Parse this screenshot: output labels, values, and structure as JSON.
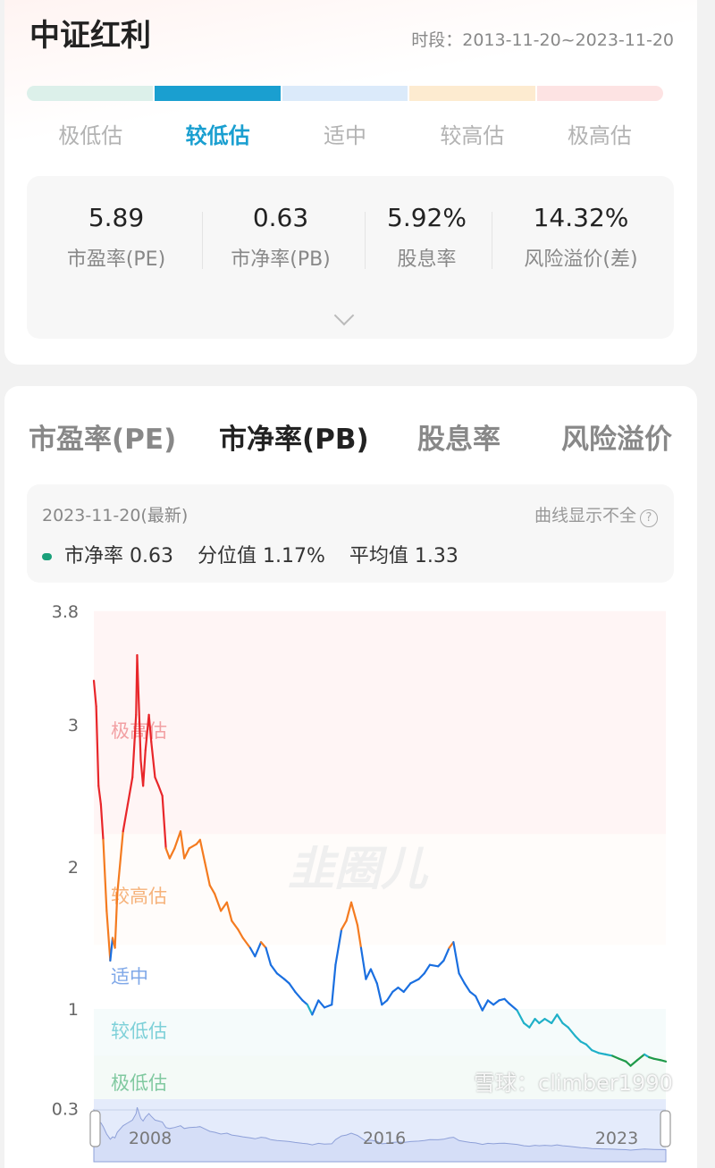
{
  "header": {
    "title": "中证红利",
    "period": "时段：2013-11-20~2023-11-20"
  },
  "valuation_bar": {
    "colors": [
      "#dcf0ea",
      "#1a9fd0",
      "#dbeafa",
      "#fdebd0",
      "#fde3e3"
    ],
    "levels": [
      "极低估",
      "较低估",
      "适中",
      "较高估",
      "极高估"
    ],
    "active_index": 1,
    "active_color": "#1a9fd0"
  },
  "stats": [
    {
      "value": "5.89",
      "label": "市盈率(PE)"
    },
    {
      "value": "0.63",
      "label": "市净率(PB)"
    },
    {
      "value": "5.92%",
      "label": "股息率"
    },
    {
      "value": "14.32%",
      "label": "风险溢价(差)"
    }
  ],
  "expand_icon": "chevron-down-icon",
  "tabs": [
    {
      "label": "市盈率(PE)"
    },
    {
      "label": "市净率(PB)",
      "active": true
    },
    {
      "label": "股息率"
    },
    {
      "label": "风险溢价"
    }
  ],
  "info": {
    "date": "2023-11-20(最新)",
    "hint": "曲线显示不全",
    "hint_icon": "question-circle-icon",
    "pb_label": "市净率",
    "pb_value": "0.63",
    "pct_label": "分位值",
    "pct_value": "1.17%",
    "avg_label": "平均值",
    "avg_value": "1.33"
  },
  "watermarks": {
    "center_logo": "韭圈儿",
    "bottom": "雪球：climber1990"
  },
  "chart_data": {
    "type": "line",
    "ylabel": "",
    "xlabel": "",
    "ylim": [
      0.3,
      3.8
    ],
    "yticks": [
      "3.8",
      "3",
      "2",
      "1",
      "0.3"
    ],
    "grid": false,
    "bands": [
      {
        "name": "极高估",
        "from": 2.23,
        "to": 3.8,
        "color": "#e8262a",
        "bg": "#fff5f5",
        "label_color": "#f2a0a3"
      },
      {
        "name": "较高估",
        "from": 1.45,
        "to": 2.23,
        "color": "#f47b20",
        "bg": "#fffcfa",
        "label_color": "#f6b27a"
      },
      {
        "name": "适中",
        "from": 1.0,
        "to": 1.45,
        "color": "#1a6fe0",
        "bg": "#ffffff",
        "label_color": "#7fa8e8"
      },
      {
        "name": "较低估",
        "from": 0.67,
        "to": 1.0,
        "color": "#1fb0c8",
        "bg": "#f5fbfb",
        "label_color": "#7dd0d8"
      },
      {
        "name": "极低估",
        "from": 0.3,
        "to": 0.67,
        "color": "#1f9a4a",
        "bg": "#f4faf7",
        "label_color": "#80c9a0"
      }
    ],
    "navigator_labels": [
      "2008",
      "2016",
      "2023"
    ],
    "points": [
      [
        "2006-01-01",
        3.31
      ],
      [
        "2006-02-01",
        3.13
      ],
      [
        "2006-03-01",
        2.57
      ],
      [
        "2006-04-01",
        2.44
      ],
      [
        "2006-05-01",
        2.19
      ],
      [
        "2006-06-15",
        1.69
      ],
      [
        "2006-08-01",
        1.34
      ],
      [
        "2006-09-01",
        1.5
      ],
      [
        "2006-10-01",
        1.43
      ],
      [
        "2006-11-01",
        1.81
      ],
      [
        "2007-01-15",
        2.25
      ],
      [
        "2007-03-15",
        2.44
      ],
      [
        "2007-05-15",
        2.63
      ],
      [
        "2007-07-01",
        3.07
      ],
      [
        "2007-07-15",
        3.49
      ],
      [
        "2007-09-01",
        2.75
      ],
      [
        "2007-10-01",
        2.57
      ],
      [
        "2007-11-01",
        2.82
      ],
      [
        "2007-12-15",
        3.07
      ],
      [
        "2008-01-15",
        2.88
      ],
      [
        "2008-03-01",
        2.63
      ],
      [
        "2008-04-15",
        2.57
      ],
      [
        "2008-06-01",
        2.5
      ],
      [
        "2008-07-15",
        2.13
      ],
      [
        "2008-09-01",
        2.06
      ],
      [
        "2008-11-01",
        2.13
      ],
      [
        "2009-01-15",
        2.25
      ],
      [
        "2009-03-01",
        2.06
      ],
      [
        "2009-05-01",
        2.13
      ],
      [
        "2009-08-01",
        2.16
      ],
      [
        "2009-09-15",
        2.19
      ],
      [
        "2009-11-15",
        2.03
      ],
      [
        "2010-01-15",
        1.87
      ],
      [
        "2010-03-15",
        1.81
      ],
      [
        "2010-06-01",
        1.69
      ],
      [
        "2010-08-15",
        1.75
      ],
      [
        "2010-10-15",
        1.62
      ],
      [
        "2011-01-01",
        1.56
      ],
      [
        "2011-03-01",
        1.5
      ],
      [
        "2011-06-01",
        1.43
      ],
      [
        "2011-08-01",
        1.37
      ],
      [
        "2011-10-15",
        1.47
      ],
      [
        "2011-12-15",
        1.43
      ],
      [
        "2012-02-15",
        1.31
      ],
      [
        "2012-05-01",
        1.25
      ],
      [
        "2012-08-01",
        1.21
      ],
      [
        "2012-10-01",
        1.18
      ],
      [
        "2012-12-15",
        1.12
      ],
      [
        "2013-03-15",
        1.06
      ],
      [
        "2013-05-15",
        1.03
      ],
      [
        "2013-07-15",
        0.96
      ],
      [
        "2013-10-01",
        1.06
      ],
      [
        "2013-12-15",
        1.01
      ],
      [
        "2014-03-15",
        1.03
      ],
      [
        "2014-05-01",
        1.31
      ],
      [
        "2014-07-15",
        1.56
      ],
      [
        "2014-09-15",
        1.62
      ],
      [
        "2014-11-15",
        1.75
      ],
      [
        "2015-02-01",
        1.59
      ],
      [
        "2015-03-15",
        1.43
      ],
      [
        "2015-05-15",
        1.21
      ],
      [
        "2015-07-15",
        1.28
      ],
      [
        "2015-10-01",
        1.18
      ],
      [
        "2015-12-01",
        1.03
      ],
      [
        "2016-02-01",
        1.06
      ],
      [
        "2016-04-01",
        1.12
      ],
      [
        "2016-06-01",
        1.15
      ],
      [
        "2016-08-01",
        1.12
      ],
      [
        "2016-10-15",
        1.18
      ],
      [
        "2017-01-15",
        1.21
      ],
      [
        "2017-03-15",
        1.25
      ],
      [
        "2017-05-15",
        1.31
      ],
      [
        "2017-08-15",
        1.3
      ],
      [
        "2017-10-15",
        1.34
      ],
      [
        "2017-12-15",
        1.43
      ],
      [
        "2018-02-01",
        1.47
      ],
      [
        "2018-04-01",
        1.25
      ],
      [
        "2018-06-01",
        1.18
      ],
      [
        "2018-08-01",
        1.12
      ],
      [
        "2018-10-01",
        1.09
      ],
      [
        "2018-12-15",
        0.99
      ],
      [
        "2019-02-15",
        1.06
      ],
      [
        "2019-04-15",
        1.03
      ],
      [
        "2019-06-15",
        1.06
      ],
      [
        "2019-08-15",
        1.07
      ],
      [
        "2019-10-01",
        1.04
      ],
      [
        "2020-01-01",
        0.99
      ],
      [
        "2020-03-15",
        0.9
      ],
      [
        "2020-05-15",
        0.87
      ],
      [
        "2020-07-15",
        0.93
      ],
      [
        "2020-09-01",
        0.9
      ],
      [
        "2020-11-01",
        0.93
      ],
      [
        "2021-01-15",
        0.9
      ],
      [
        "2021-03-15",
        0.96
      ],
      [
        "2021-05-15",
        0.9
      ],
      [
        "2021-07-15",
        0.87
      ],
      [
        "2021-10-01",
        0.81
      ],
      [
        "2021-12-01",
        0.77
      ],
      [
        "2022-02-01",
        0.75
      ],
      [
        "2022-04-01",
        0.71
      ],
      [
        "2022-06-15",
        0.69
      ],
      [
        "2022-09-01",
        0.68
      ],
      [
        "2022-11-15",
        0.67
      ],
      [
        "2023-01-15",
        0.65
      ],
      [
        "2023-03-01",
        0.63
      ],
      [
        "2023-04-01",
        0.6
      ],
      [
        "2023-05-15",
        0.64
      ],
      [
        "2023-07-01",
        0.68
      ],
      [
        "2023-08-01",
        0.66
      ],
      [
        "2023-09-01",
        0.65
      ],
      [
        "2023-10-15",
        0.64
      ],
      [
        "2023-11-20",
        0.63
      ]
    ]
  }
}
